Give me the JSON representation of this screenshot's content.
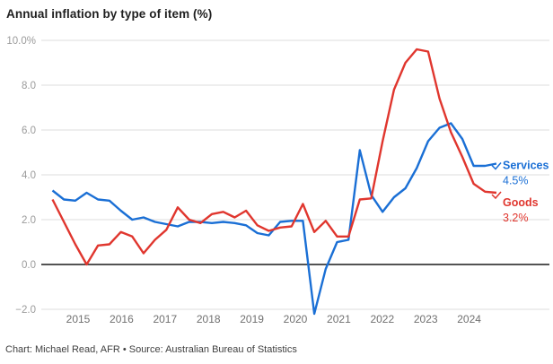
{
  "title": "Annual inflation by type of item (%)",
  "caption": "Chart: Michael Read, AFR • Source: Australian Bureau of Statistics",
  "colors": {
    "services": "#1a6fd5",
    "goods": "#e0362e",
    "grid": "#dcdcdc",
    "zero_line": "#1a1a1a",
    "axis_text": "#9b9b9b",
    "year_text": "#707070",
    "title_text": "#1f1f1f",
    "caption_text": "#3f3f3f"
  },
  "chart_data": {
    "type": "line",
    "x": [
      "2014-Q3",
      "2014-Q4",
      "2015-Q1",
      "2015-Q2",
      "2015-Q3",
      "2015-Q4",
      "2016-Q1",
      "2016-Q2",
      "2016-Q3",
      "2016-Q4",
      "2017-Q1",
      "2017-Q2",
      "2017-Q3",
      "2017-Q4",
      "2018-Q1",
      "2018-Q2",
      "2018-Q3",
      "2018-Q4",
      "2019-Q1",
      "2019-Q2",
      "2019-Q3",
      "2019-Q4",
      "2020-Q1",
      "2020-Q2",
      "2020-Q3",
      "2020-Q4",
      "2021-Q1",
      "2021-Q2",
      "2021-Q3",
      "2021-Q4",
      "2022-Q1",
      "2022-Q2",
      "2022-Q3",
      "2022-Q4",
      "2023-Q1",
      "2023-Q2",
      "2023-Q3",
      "2023-Q4",
      "2024-Q1",
      "2024-Q2"
    ],
    "series": [
      {
        "name": "Services",
        "color_key": "services",
        "end_label": "4.5%",
        "values": [
          3.3,
          2.9,
          2.85,
          3.2,
          2.9,
          2.85,
          2.4,
          2.0,
          2.1,
          1.9,
          1.8,
          1.7,
          1.9,
          1.9,
          1.85,
          1.9,
          1.85,
          1.75,
          1.4,
          1.3,
          1.9,
          1.95,
          1.95,
          -2.2,
          -0.2,
          1.0,
          1.1,
          5.1,
          3.1,
          2.35,
          3.0,
          3.4,
          4.3,
          5.5,
          6.1,
          6.3,
          5.6,
          4.4,
          4.4,
          4.5
        ]
      },
      {
        "name": "Goods",
        "color_key": "goods",
        "end_label": "3.2%",
        "values": [
          2.9,
          1.9,
          0.9,
          0.0,
          0.85,
          0.9,
          1.45,
          1.25,
          0.5,
          1.1,
          1.55,
          2.55,
          2.0,
          1.85,
          2.25,
          2.35,
          2.1,
          2.4,
          1.75,
          1.5,
          1.65,
          1.7,
          2.7,
          1.45,
          1.95,
          1.25,
          1.25,
          2.9,
          2.95,
          5.5,
          7.8,
          9.0,
          9.6,
          9.5,
          7.4,
          5.9,
          4.8,
          3.6,
          3.25,
          3.2
        ]
      }
    ],
    "ylim": [
      -2.0,
      10.0
    ],
    "yticks": [
      {
        "label": "10.0%",
        "value": 10
      },
      {
        "label": "8.0",
        "value": 8
      },
      {
        "label": "6.0",
        "value": 6
      },
      {
        "label": "4.0",
        "value": 4
      },
      {
        "label": "2.0",
        "value": 2
      },
      {
        "label": "0.0",
        "value": 0
      },
      {
        "label": "−2.0",
        "value": -2
      }
    ],
    "xticks": [
      "2015",
      "2016",
      "2017",
      "2018",
      "2019",
      "2020",
      "2021",
      "2022",
      "2023",
      "2024"
    ],
    "grid": true,
    "legend_position": "right-end-labels"
  }
}
